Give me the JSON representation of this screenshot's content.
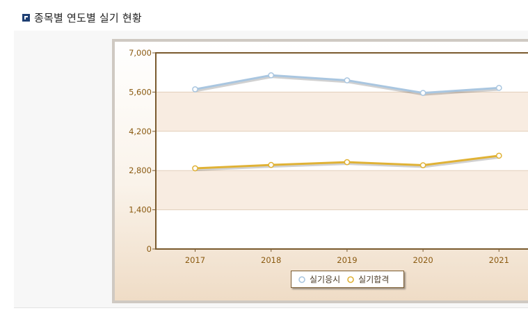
{
  "page": {
    "title": "종목별 연도별 실기 현황"
  },
  "colors": {
    "axis": "#7a5a2e",
    "tick_text": "#8a5a10",
    "band": "#f8ece1",
    "grid": "#e2cfba",
    "series_apply": "#a9c6e0",
    "series_pass": "#e0b235"
  },
  "chart_data": {
    "type": "line",
    "title": "",
    "xlabel": "",
    "ylabel": "",
    "categories": [
      "2017",
      "2018",
      "2019",
      "2020",
      "2021"
    ],
    "y_ticks": [
      "0",
      "1,400",
      "2,800",
      "4,200",
      "5,600",
      "7,000"
    ],
    "ylim": [
      0,
      7000
    ],
    "grid": true,
    "legend_position": "bottom-center",
    "series": [
      {
        "name": "실기응시",
        "values": [
          5700,
          6200,
          6020,
          5570,
          5750
        ],
        "color": "#a9c6e0",
        "marker": "circle"
      },
      {
        "name": "실기합격",
        "values": [
          2880,
          3000,
          3100,
          2990,
          3330
        ],
        "color": "#e0b235",
        "marker": "circle"
      }
    ]
  }
}
